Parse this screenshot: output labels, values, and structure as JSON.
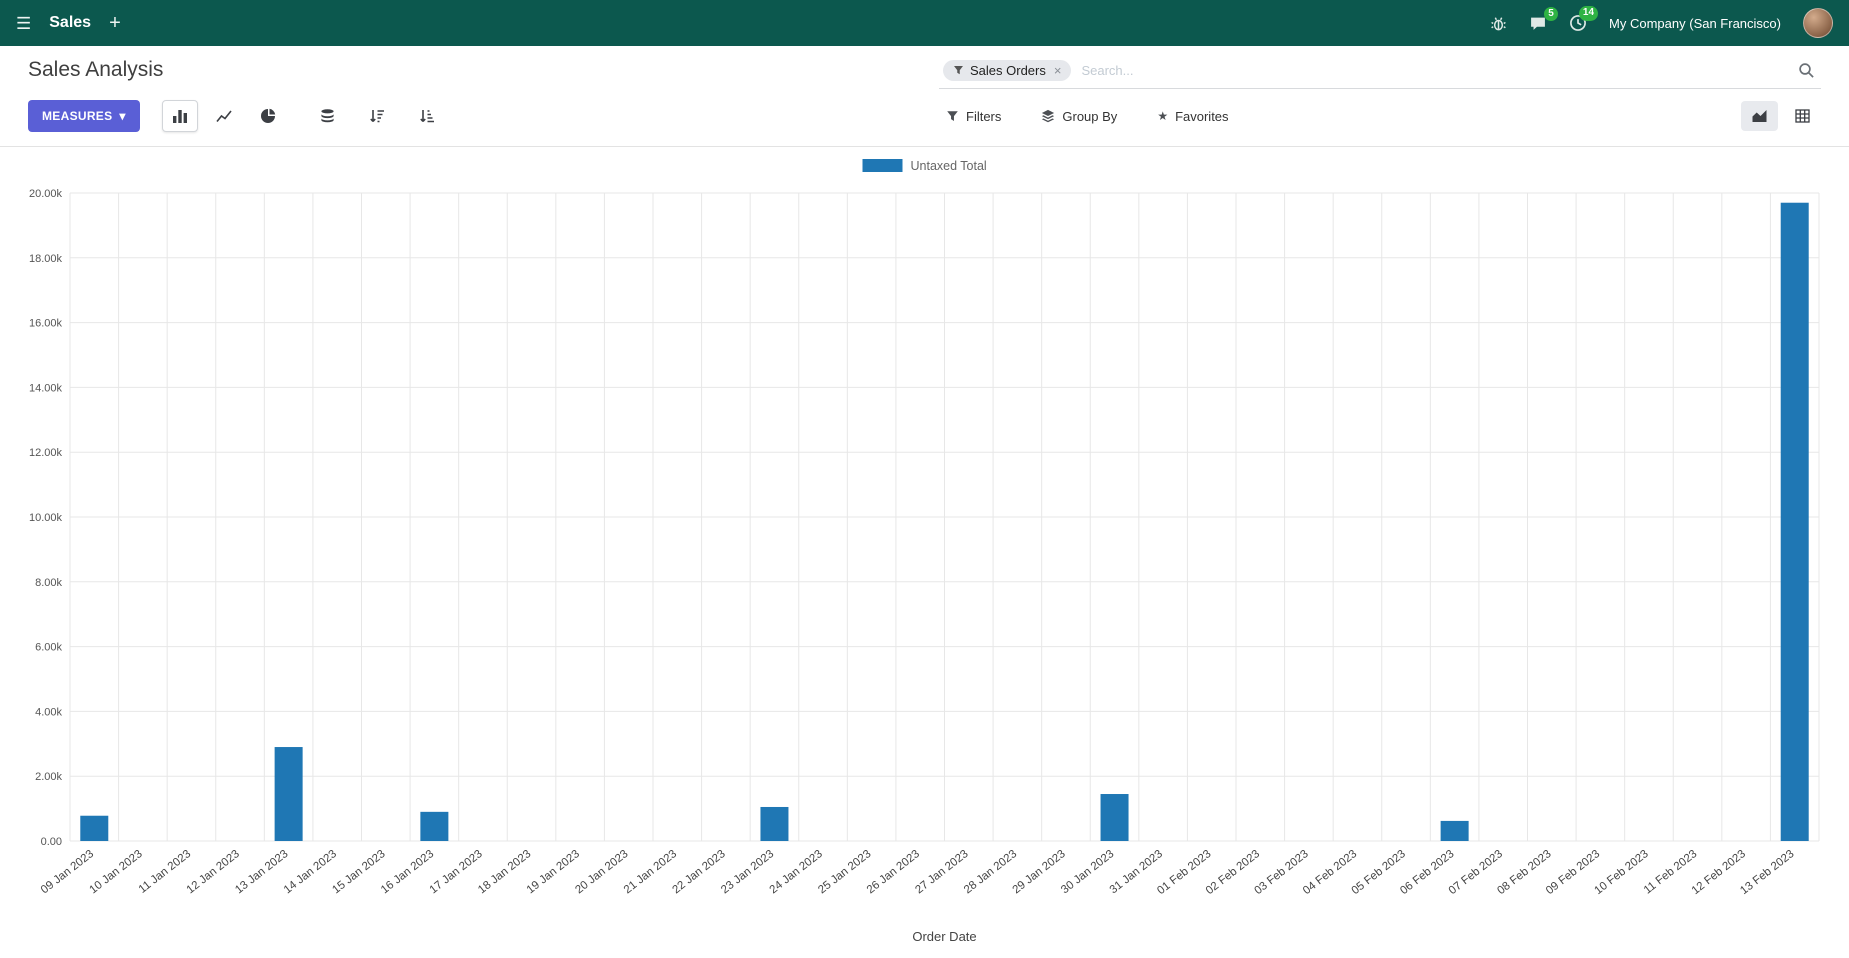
{
  "colors": {
    "navbar_bg": "#0c584e",
    "primary_button": "#5a5fd6",
    "bar": "#1f77b4",
    "badge_green": "#2fb344"
  },
  "icons": {
    "hamburger": "☰",
    "plus": "+",
    "caret_down": "▾",
    "star": "★",
    "facet_remove": "×"
  },
  "navbar": {
    "app_name": "Sales",
    "company": "My Company (San Francisco)",
    "messages_badge": "5",
    "activities_badge": "14"
  },
  "control_panel": {
    "title": "Sales Analysis",
    "measures_label": "MEASURES",
    "filters_label": "Filters",
    "group_by_label": "Group By",
    "favorites_label": "Favorites",
    "search": {
      "facet_label": "Sales Orders",
      "placeholder": "Search..."
    }
  },
  "chart_data": {
    "type": "bar",
    "title": "",
    "xlabel": "Order Date",
    "ylabel": "",
    "ylim": [
      0,
      20000
    ],
    "ytick_step": 2000,
    "ytick_labels": [
      "0.00",
      "2.00k",
      "4.00k",
      "6.00k",
      "8.00k",
      "10.00k",
      "12.00k",
      "14.00k",
      "16.00k",
      "18.00k",
      "20.00k"
    ],
    "grid": true,
    "legend_position": "top",
    "categories": [
      "09 Jan 2023",
      "10 Jan 2023",
      "11 Jan 2023",
      "12 Jan 2023",
      "13 Jan 2023",
      "14 Jan 2023",
      "15 Jan 2023",
      "16 Jan 2023",
      "17 Jan 2023",
      "18 Jan 2023",
      "19 Jan 2023",
      "20 Jan 2023",
      "21 Jan 2023",
      "22 Jan 2023",
      "23 Jan 2023",
      "24 Jan 2023",
      "25 Jan 2023",
      "26 Jan 2023",
      "27 Jan 2023",
      "28 Jan 2023",
      "29 Jan 2023",
      "30 Jan 2023",
      "31 Jan 2023",
      "01 Feb 2023",
      "02 Feb 2023",
      "03 Feb 2023",
      "04 Feb 2023",
      "05 Feb 2023",
      "06 Feb 2023",
      "07 Feb 2023",
      "08 Feb 2023",
      "09 Feb 2023",
      "10 Feb 2023",
      "11 Feb 2023",
      "12 Feb 2023",
      "13 Feb 2023"
    ],
    "series": [
      {
        "name": "Untaxed Total",
        "color": "#1f77b4",
        "values": [
          780,
          0,
          0,
          0,
          2900,
          0,
          0,
          900,
          0,
          0,
          0,
          0,
          0,
          0,
          1050,
          0,
          0,
          0,
          0,
          0,
          0,
          1450,
          0,
          0,
          0,
          0,
          0,
          0,
          620,
          0,
          0,
          0,
          0,
          0,
          0,
          19700
        ]
      }
    ]
  }
}
